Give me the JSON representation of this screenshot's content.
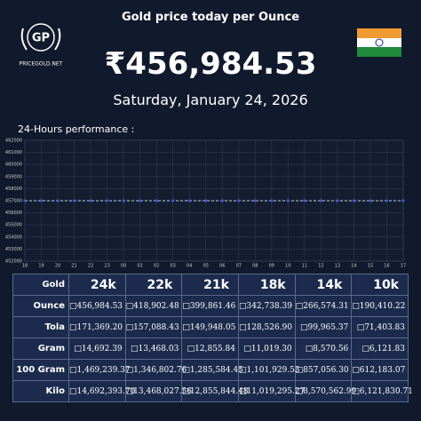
{
  "header": {
    "logo": "GP",
    "site": "PRICEGOLD.NET",
    "title": "Gold price today per Ounce",
    "price": "₹456,984.53",
    "date": "Saturday, January 24, 2026"
  },
  "chart_label": "24-Hours performance :",
  "chart_data": {
    "type": "line",
    "categories": [
      "18",
      "19",
      "20",
      "21",
      "22",
      "23",
      "00",
      "01",
      "02",
      "03",
      "04",
      "05",
      "06",
      "07",
      "08",
      "09",
      "10",
      "11",
      "12",
      "13",
      "14",
      "15",
      "16",
      "17"
    ],
    "series": [
      {
        "name": "Gold",
        "color": "#3a5bd9",
        "values": [
          457000,
          457000,
          457000,
          457000,
          457000,
          457000,
          457000,
          457000,
          457000,
          457000,
          457000,
          457000,
          457000,
          457000,
          457000,
          457000,
          457000,
          457000,
          457000,
          457000,
          457000,
          457000,
          457000,
          457000
        ]
      }
    ],
    "ylim": [
      452000,
      462000
    ],
    "yticks": [
      452000,
      453000,
      454000,
      455000,
      456000,
      457000,
      458000,
      459000,
      460000,
      461000,
      462000
    ],
    "grid": true
  },
  "table": {
    "header": [
      "Gold",
      "24k",
      "22k",
      "21k",
      "18k",
      "14k",
      "10k"
    ],
    "rows": [
      [
        "Ounce",
        "□456,984.53",
        "□418,902.48",
        "□399,861.46",
        "□342,738.39",
        "□266,574.31",
        "□190,410.22"
      ],
      [
        "Tola",
        "□171,369.20",
        "□157,088.43",
        "□149,948.05",
        "□128,526.90",
        "□99,965.37",
        "□71,403.83"
      ],
      [
        "Gram",
        "□14,692.39",
        "□13,468.03",
        "□12,855.84",
        "□11,019.30",
        "□8,570.56",
        "□6,121.83"
      ],
      [
        "100 Gram",
        "□1,469,239.37",
        "□1,346,802.76",
        "□1,285,584.45",
        "□1,101,929.53",
        "□857,056.30",
        "□612,183.07"
      ],
      [
        "Kilo",
        "□14,692,393.70",
        "□13,468,027.56",
        "□12,855,844.48",
        "□11,019,295.27",
        "□8,570,562.99",
        "□6,121,830.71"
      ]
    ]
  }
}
